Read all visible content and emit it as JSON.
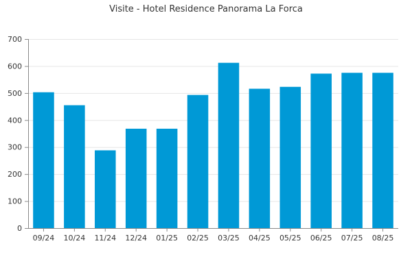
{
  "chart_data": {
    "type": "bar",
    "title": "Visite - Hotel Residence Panorama La Forca",
    "xlabel": "",
    "ylabel": "",
    "categories": [
      "09/24",
      "10/24",
      "11/24",
      "12/24",
      "01/25",
      "02/25",
      "03/25",
      "04/25",
      "05/25",
      "06/25",
      "07/25",
      "08/25"
    ],
    "values": [
      503,
      455,
      288,
      368,
      368,
      493,
      612,
      516,
      523,
      572,
      575,
      575
    ],
    "ylim": [
      0,
      700
    ],
    "yticks": [
      0,
      100,
      200,
      300,
      400,
      500,
      600,
      700
    ],
    "grid": true,
    "legend": "none",
    "bar_color": "#0099d6"
  }
}
